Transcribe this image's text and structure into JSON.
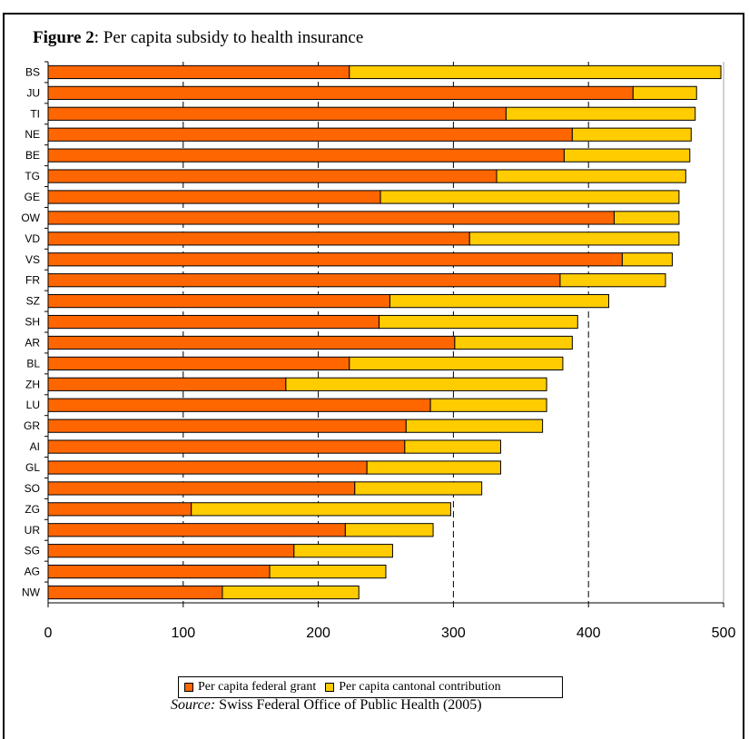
{
  "figure": {
    "label": "Figure 2",
    "title": ": Per capita subsidy to health insurance"
  },
  "legend": {
    "federal": "Per capita federal grant",
    "cantonal": "Per capita cantonal contribution"
  },
  "source": {
    "label": "Source:",
    "text": "  Swiss Federal Office of Public Health (2005)"
  },
  "colors": {
    "federal": "#FF6600",
    "cantonal": "#FFCC00"
  },
  "chart_data": {
    "type": "bar",
    "orientation": "horizontal",
    "stacked": true,
    "title": "Per capita subsidy to health insurance",
    "xlim": [
      0,
      500
    ],
    "xticks": [
      0,
      100,
      200,
      300,
      400,
      500
    ],
    "grid": "vertical dashed",
    "legend_position": "bottom",
    "categories": [
      "BS",
      "JU",
      "TI",
      "NE",
      "BE",
      "TG",
      "GE",
      "OW",
      "VD",
      "VS",
      "FR",
      "SZ",
      "SH",
      "AR",
      "BL",
      "ZH",
      "LU",
      "GR",
      "AI",
      "GL",
      "SO",
      "ZG",
      "UR",
      "SG",
      "AG",
      "NW"
    ],
    "series": [
      {
        "name": "Per capita federal grant",
        "values": [
          223,
          433,
          339,
          388,
          382,
          332,
          246,
          419,
          312,
          425,
          379,
          253,
          245,
          301,
          223,
          176,
          283,
          265,
          264,
          236,
          227,
          106,
          220,
          182,
          164,
          129
        ]
      },
      {
        "name": "Per capita cantonal contribution",
        "values": [
          275,
          47,
          140,
          88,
          93,
          140,
          221,
          48,
          155,
          37,
          78,
          162,
          147,
          87,
          158,
          193,
          86,
          101,
          71,
          99,
          94,
          192,
          65,
          73,
          86,
          101
        ]
      }
    ]
  }
}
